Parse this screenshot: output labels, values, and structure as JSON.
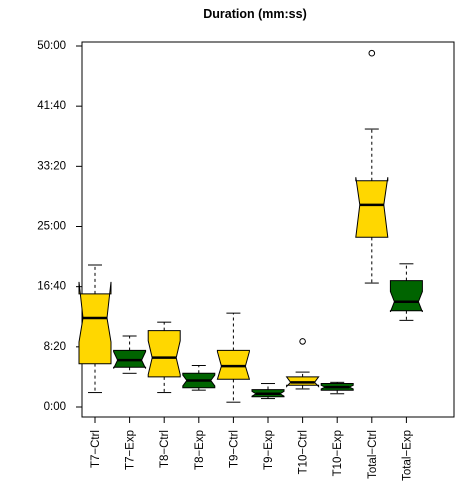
{
  "chart_data": {
    "type": "boxplot",
    "title": "Duration (mm:ss)",
    "xlabel": "",
    "ylabel": "",
    "y_unit": "seconds",
    "ylim": [
      0,
      3100
    ],
    "yticks": [
      {
        "value": 0,
        "label": "0:00"
      },
      {
        "value": 500,
        "label": "8:20"
      },
      {
        "value": 1000,
        "label": "16:40"
      },
      {
        "value": 1500,
        "label": "25:00"
      },
      {
        "value": 2000,
        "label": "33:20"
      },
      {
        "value": 2500,
        "label": "41:40"
      },
      {
        "value": 3000,
        "label": "50:00"
      }
    ],
    "notched": true,
    "colors": {
      "Ctrl": "#FFD700",
      "Exp": "#006400"
    },
    "categories": [
      "T7−Ctrl",
      "T7−Exp",
      "T8−Ctrl",
      "T8−Exp",
      "T9−Ctrl",
      "T9−Exp",
      "T10−Ctrl",
      "T10−Exp",
      "Total−Ctrl",
      "Total−Exp"
    ],
    "boxes": [
      {
        "group": "Ctrl",
        "whisker_low": 120,
        "q1": 360,
        "median": 740,
        "q3": 940,
        "whisker_high": 1180,
        "notch_low": 540,
        "notch_high": 1040,
        "outliers": []
      },
      {
        "group": "Exp",
        "whisker_low": 280,
        "q1": 330,
        "median": 390,
        "q3": 470,
        "whisker_high": 590,
        "notch_low": 320,
        "notch_high": 460,
        "outliers": []
      },
      {
        "group": "Ctrl",
        "whisker_low": 120,
        "q1": 250,
        "median": 410,
        "q3": 635,
        "whisker_high": 705,
        "notch_low": 270,
        "notch_high": 550,
        "outliers": []
      },
      {
        "group": "Exp",
        "whisker_low": 140,
        "q1": 160,
        "median": 220,
        "q3": 280,
        "whisker_high": 345,
        "notch_low": 175,
        "notch_high": 265,
        "outliers": []
      },
      {
        "group": "Ctrl",
        "whisker_low": 40,
        "q1": 230,
        "median": 340,
        "q3": 470,
        "whisker_high": 780,
        "notch_low": 230,
        "notch_high": 460,
        "outliers": []
      },
      {
        "group": "Exp",
        "whisker_low": 70,
        "q1": 85,
        "median": 110,
        "q3": 145,
        "whisker_high": 195,
        "notch_low": 90,
        "notch_high": 130,
        "outliers": []
      },
      {
        "group": "Ctrl",
        "whisker_low": 150,
        "q1": 180,
        "median": 205,
        "q3": 250,
        "whisker_high": 290,
        "notch_low": 170,
        "notch_high": 250,
        "outliers": [
          545
        ]
      },
      {
        "group": "Exp",
        "whisker_low": 110,
        "q1": 140,
        "median": 165,
        "q3": 195,
        "whisker_high": 205,
        "notch_low": 150,
        "notch_high": 180,
        "outliers": []
      },
      {
        "group": "Ctrl",
        "whisker_low": 1030,
        "q1": 1410,
        "median": 1680,
        "q3": 1880,
        "whisker_high": 2310,
        "notch_low": 1410,
        "notch_high": 1910,
        "outliers": [
          2940
        ]
      },
      {
        "group": "Exp",
        "whisker_low": 720,
        "q1": 800,
        "median": 875,
        "q3": 1050,
        "whisker_high": 1190,
        "notch_low": 790,
        "notch_high": 960,
        "outliers": []
      }
    ]
  }
}
